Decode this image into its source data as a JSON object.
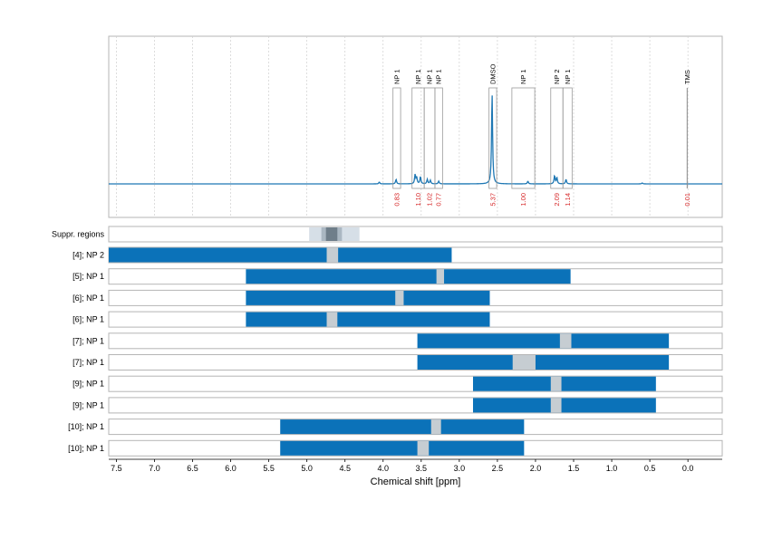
{
  "chart_data": {
    "type": "nmr_spectrum_with_bars",
    "xlabel": "Chemical shift [ppm]",
    "xlim": [
      7.6,
      -0.45
    ],
    "xticks": [
      "7.5",
      "7.0",
      "6.5",
      "6.0",
      "5.5",
      "5.0",
      "4.5",
      "4.0",
      "3.5",
      "3.0",
      "2.5",
      "2.0",
      "1.5",
      "1.0",
      "0.5",
      "0.0"
    ],
    "grid": true,
    "colors": {
      "spectrum": "#1f78b4",
      "bar": "#0b72b9",
      "gap": "#c6cdd2",
      "integral": "#d62728",
      "suppr_light": "#d6dfe7",
      "suppr_mid": "#aab7c2",
      "suppr_dark": "#6f7e8a"
    },
    "peak_annotations": [
      {
        "label": "NP 1",
        "from": 3.87,
        "to": 3.77,
        "integral": "0.83"
      },
      {
        "label": "NP 1",
        "from": 3.62,
        "to": 3.46,
        "integral": "1.10"
      },
      {
        "label": "NP 1",
        "from": 3.46,
        "to": 3.32,
        "integral": "1.02"
      },
      {
        "label": "NP 1",
        "from": 3.32,
        "to": 3.22,
        "integral": "0.77"
      },
      {
        "label": "DMSO",
        "from": 2.61,
        "to": 2.51,
        "integral": "5.37"
      },
      {
        "label": "NP 1",
        "from": 2.31,
        "to": 2.01,
        "integral": "1.00"
      },
      {
        "label": "NP 2",
        "from": 1.8,
        "to": 1.64,
        "integral": "2.09"
      },
      {
        "label": "NP 1",
        "from": 1.64,
        "to": 1.52,
        "integral": "1.14"
      },
      {
        "label": "TMS",
        "from": 0.01,
        "to": 0.01,
        "integral": "0.01"
      }
    ],
    "suppr_regions": {
      "label": "Suppr. regions",
      "bands": [
        {
          "from": 4.97,
          "to": 4.31,
          "level": "light"
        },
        {
          "from": 4.81,
          "to": 4.54,
          "level": "mid"
        },
        {
          "from": 4.75,
          "to": 4.6,
          "level": "dark"
        }
      ]
    },
    "rows": [
      {
        "label": "[4]; NP 2",
        "from": 7.6,
        "to": 3.1,
        "gap": [
          4.74,
          4.59
        ]
      },
      {
        "label": "[5]; NP 1",
        "from": 5.8,
        "to": 1.54,
        "gap": [
          3.3,
          3.2
        ]
      },
      {
        "label": "[6]; NP 1",
        "from": 5.8,
        "to": 2.6,
        "gap": [
          3.84,
          3.73
        ]
      },
      {
        "label": "[6]; NP 1",
        "from": 5.8,
        "to": 2.6,
        "gap": [
          4.74,
          4.6
        ]
      },
      {
        "label": "[7]; NP 1",
        "from": 3.55,
        "to": 0.25,
        "gap": [
          1.68,
          1.53
        ]
      },
      {
        "label": "[7]; NP 1",
        "from": 3.55,
        "to": 0.25,
        "gap": [
          2.3,
          2.0
        ]
      },
      {
        "label": "[9]; NP 1",
        "from": 2.82,
        "to": 0.42,
        "gap": [
          1.8,
          1.66
        ]
      },
      {
        "label": "[9]; NP 1",
        "from": 2.82,
        "to": 0.42,
        "gap": [
          1.8,
          1.66
        ]
      },
      {
        "label": "[10]; NP 1",
        "from": 5.35,
        "to": 2.15,
        "gap": [
          3.37,
          3.24
        ]
      },
      {
        "label": "[10]; NP 1",
        "from": 5.35,
        "to": 2.15,
        "gap": [
          3.55,
          3.4
        ]
      }
    ],
    "spectrum_peaks": [
      {
        "x": 3.83,
        "h": 0.05
      },
      {
        "x": 3.58,
        "h": 0.1
      },
      {
        "x": 3.56,
        "h": 0.07
      },
      {
        "x": 3.51,
        "h": 0.08
      },
      {
        "x": 3.42,
        "h": 0.05
      },
      {
        "x": 3.38,
        "h": 0.04
      },
      {
        "x": 3.27,
        "h": 0.03
      },
      {
        "x": 2.57,
        "h": 1.0
      },
      {
        "x": 2.1,
        "h": 0.03
      },
      {
        "x": 1.75,
        "h": 0.09
      },
      {
        "x": 1.72,
        "h": 0.07
      },
      {
        "x": 1.6,
        "h": 0.05
      },
      {
        "x": 0.6,
        "h": 0.01
      },
      {
        "x": 4.05,
        "h": 0.02
      }
    ]
  }
}
